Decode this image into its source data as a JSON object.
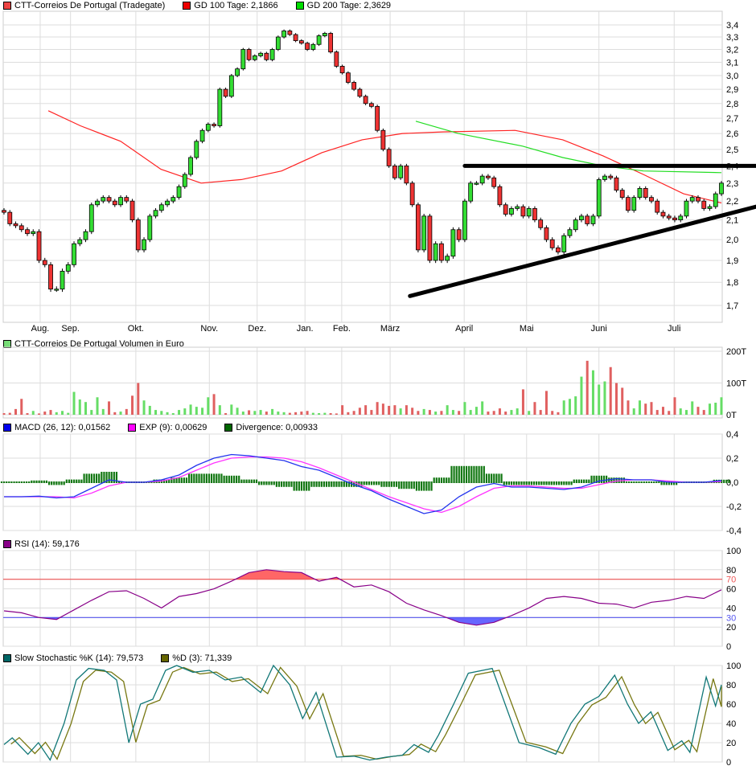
{
  "legends": {
    "main": [
      {
        "label": "CTT-Correios De Portugal (Tradegate)",
        "color": "#ee4444"
      },
      {
        "label": "GD 100 Tage: 2,1866",
        "color": "#ee0000"
      },
      {
        "label": "GD 200 Tage: 2,3629",
        "color": "#00dd00"
      }
    ],
    "volume": [
      {
        "label": "CTT-Correios De Portugal Volumen in Euro",
        "color": "#77dd77"
      }
    ],
    "macd": [
      {
        "label": "MACD (26, 12): 0,01562",
        "color": "#0000ee"
      },
      {
        "label": "EXP (9): 0,00629",
        "color": "#ff00ff"
      },
      {
        "label": "Divergence: 0,00933",
        "color": "#006600"
      }
    ],
    "rsi": [
      {
        "label": "RSI (14): 59,176",
        "color": "#880088"
      }
    ],
    "stoch": [
      {
        "label": "Slow Stochastic %K (14): 79,573",
        "color": "#006666"
      },
      {
        "label": "%D (3): 71,339",
        "color": "#666600"
      }
    ]
  },
  "chart_data": [
    {
      "type": "candlestick",
      "scale": "log",
      "ylim": [
        1.65,
        3.45
      ],
      "grid": true,
      "y_ticks": [
        "1,7",
        "1,8",
        "1,9",
        "2,0",
        "2,1",
        "2,2",
        "2,3",
        "2,4",
        "2,5",
        "2,6",
        "2,7",
        "2,8",
        "2,9",
        "3,0",
        "3,1",
        "3,2",
        "3,3",
        "3,4"
      ],
      "y_tick_values": [
        1.7,
        1.8,
        1.9,
        2.0,
        2.1,
        2.2,
        2.3,
        2.4,
        2.5,
        2.6,
        2.7,
        2.8,
        2.9,
        3.0,
        3.1,
        3.2,
        3.3,
        3.4
      ],
      "month_ticks": [
        {
          "label": "Aug.",
          "index": 6.2
        },
        {
          "label": "Sep.",
          "index": 11.4
        },
        {
          "label": "Okt.",
          "index": 22.6
        },
        {
          "label": "Nov.",
          "index": 35.2
        },
        {
          "label": "Dez.",
          "index": 43.4
        },
        {
          "label": "Jan.",
          "index": 51.6
        },
        {
          "label": "Feb.",
          "index": 57.9
        },
        {
          "label": "März",
          "index": 66.2
        },
        {
          "label": "April",
          "index": 78.9
        },
        {
          "label": "Mai",
          "index": 89.6
        },
        {
          "label": "Juni",
          "index": 102
        },
        {
          "label": "Juli",
          "index": 114.9
        }
      ],
      "closes": [
        2.14,
        2.08,
        2.07,
        2.05,
        2.03,
        2.04,
        1.9,
        1.88,
        1.77,
        1.77,
        1.85,
        1.88,
        1.98,
        2.0,
        2.04,
        2.18,
        2.2,
        2.22,
        2.2,
        2.18,
        2.22,
        2.2,
        2.1,
        1.95,
        2.0,
        2.12,
        2.15,
        2.18,
        2.2,
        2.22,
        2.28,
        2.35,
        2.45,
        2.55,
        2.62,
        2.66,
        2.65,
        2.9,
        2.85,
        3.0,
        3.05,
        3.2,
        3.12,
        3.15,
        3.17,
        3.12,
        3.2,
        3.3,
        3.35,
        3.32,
        3.27,
        3.25,
        3.2,
        3.24,
        3.31,
        3.33,
        3.18,
        3.07,
        3.02,
        2.95,
        2.9,
        2.85,
        2.8,
        2.78,
        2.62,
        2.5,
        2.4,
        2.33,
        2.4,
        2.3,
        2.18,
        1.95,
        2.12,
        1.9,
        1.98,
        1.9,
        1.92,
        2.05,
        2.0,
        2.2,
        2.3,
        2.3,
        2.34,
        2.33,
        2.28,
        2.18,
        2.13,
        2.16,
        2.17,
        2.12,
        2.16,
        2.1,
        2.06,
        2.0,
        1.96,
        1.94,
        2.02,
        2.05,
        2.1,
        2.12,
        2.08,
        2.12,
        2.32,
        2.34,
        2.33,
        2.26,
        2.22,
        2.15,
        2.22,
        2.27,
        2.22,
        2.2,
        2.14,
        2.12,
        2.11,
        2.1,
        2.12,
        2.2,
        2.22,
        2.2,
        2.16,
        2.17,
        2.24,
        2.3
      ],
      "gd100": [
        [
          7.6,
          2.75
        ],
        [
          13.1,
          2.65
        ],
        [
          20,
          2.55
        ],
        [
          26.9,
          2.38
        ],
        [
          33.8,
          2.3
        ],
        [
          40.7,
          2.32
        ],
        [
          47.6,
          2.37
        ],
        [
          54.5,
          2.48
        ],
        [
          61.4,
          2.56
        ],
        [
          68.3,
          2.6
        ],
        [
          75.2,
          2.61
        ],
        [
          87.6,
          2.62
        ],
        [
          95.8,
          2.56
        ],
        [
          102.7,
          2.46
        ],
        [
          109.6,
          2.35
        ],
        [
          116.5,
          2.24
        ],
        [
          123,
          2.19
        ]
      ],
      "gd200": [
        [
          70.6,
          2.68
        ],
        [
          77.9,
          2.6
        ],
        [
          88.9,
          2.52
        ],
        [
          95.8,
          2.45
        ],
        [
          102.7,
          2.4
        ],
        [
          109.6,
          2.37
        ],
        [
          123,
          2.36
        ]
      ],
      "trendlines": [
        {
          "from": [
            79,
            2.4
          ],
          "to": [
            129,
            2.4
          ]
        },
        {
          "from": [
            69.6,
            1.74
          ],
          "to": [
            129,
            2.17
          ]
        }
      ]
    },
    {
      "type": "bar",
      "ylim": [
        0,
        200
      ],
      "y_ticks": [
        "0T",
        "100T",
        "200T"
      ],
      "y_tick_values": [
        0,
        100,
        200
      ],
      "values": [
        5,
        6,
        18,
        50,
        5,
        12,
        4,
        10,
        15,
        8,
        12,
        6,
        72,
        48,
        40,
        15,
        55,
        18,
        42,
        8,
        10,
        18,
        60,
        100,
        45,
        28,
        15,
        12,
        8,
        5,
        15,
        20,
        32,
        25,
        22,
        55,
        65,
        30,
        5,
        32,
        22,
        10,
        14,
        12,
        15,
        10,
        18,
        10,
        8,
        6,
        8,
        10,
        12,
        6,
        5,
        6,
        5,
        4,
        30,
        8,
        12,
        22,
        30,
        15,
        40,
        35,
        28,
        30,
        20,
        30,
        22,
        12,
        18,
        15,
        10,
        12,
        30,
        15,
        12,
        40,
        15,
        25,
        42,
        10,
        12,
        20,
        10,
        15,
        20,
        80,
        12,
        40,
        15,
        75,
        12,
        8,
        45,
        50,
        58,
        120,
        170,
        140,
        95,
        105,
        150,
        100,
        85,
        45,
        20,
        45,
        35,
        40,
        15,
        25,
        12,
        55,
        20,
        15,
        42,
        25,
        15,
        35,
        38,
        55
      ]
    },
    {
      "type": "line",
      "ylim": [
        -0.4,
        0.4
      ],
      "y_ticks": [
        "-0,4",
        "-0,2",
        "0,0",
        "0,2",
        "0,4"
      ],
      "y_tick_values": [
        -0.4,
        -0.2,
        0,
        0.2,
        0.4
      ],
      "macd": [
        -0.12,
        -0.12,
        -0.115,
        -0.13,
        -0.12,
        -0.05,
        0.02,
        0.0,
        0.0,
        0.02,
        0.06,
        0.14,
        0.2,
        0.23,
        0.22,
        0.2,
        0.18,
        0.13,
        0.1,
        0.04,
        -0.02,
        -0.07,
        -0.14,
        -0.2,
        -0.26,
        -0.23,
        -0.12,
        -0.04,
        -0.01,
        -0.04,
        -0.04,
        -0.05,
        -0.06,
        -0.04,
        0.01,
        0.03,
        0.02,
        0.02,
        0.0,
        0.0,
        0.0,
        0.015
      ],
      "exp": [
        -0.12,
        -0.12,
        -0.12,
        -0.12,
        -0.13,
        -0.09,
        -0.03,
        0.0,
        0.0,
        0.01,
        0.04,
        0.1,
        0.16,
        0.2,
        0.21,
        0.21,
        0.2,
        0.17,
        0.12,
        0.06,
        0.0,
        -0.06,
        -0.12,
        -0.17,
        -0.22,
        -0.25,
        -0.2,
        -0.12,
        -0.05,
        -0.03,
        -0.03,
        -0.04,
        -0.05,
        -0.05,
        -0.02,
        0.01,
        0.02,
        0.02,
        0.01,
        0.0,
        0.0,
        0.006
      ]
    },
    {
      "type": "line",
      "ylim": [
        0,
        100
      ],
      "y_ticks": [
        "0",
        "20",
        "30",
        "40",
        "60",
        "70",
        "80",
        "100"
      ],
      "y_tick_values": [
        0,
        20,
        30,
        40,
        60,
        70,
        80,
        100
      ],
      "levels": [
        {
          "value": 70,
          "color": "#ee5555"
        },
        {
          "value": 30,
          "color": "#5555ee"
        }
      ],
      "rsi": [
        37,
        35,
        30,
        28,
        38,
        48,
        57,
        58,
        50,
        40,
        52,
        55,
        60,
        68,
        77,
        80,
        78,
        77,
        68,
        72,
        62,
        64,
        57,
        45,
        38,
        32,
        25,
        22,
        25,
        32,
        40,
        50,
        52,
        50,
        45,
        44,
        40,
        46,
        48,
        52,
        50,
        59
      ]
    },
    {
      "type": "line",
      "ylim": [
        0,
        100
      ],
      "y_ticks": [
        "0",
        "20",
        "40",
        "60",
        "80",
        "100"
      ],
      "y_tick_values": [
        0,
        20,
        40,
        60,
        80,
        100
      ],
      "k": [
        [
          0,
          18
        ],
        [
          1.4,
          25
        ],
        [
          4.1,
          8
        ],
        [
          5.9,
          20
        ],
        [
          7.9,
          2
        ],
        [
          10.3,
          40
        ],
        [
          12.4,
          85
        ],
        [
          14.5,
          97
        ],
        [
          17.2,
          95
        ],
        [
          19.3,
          85
        ],
        [
          21.4,
          20
        ],
        [
          23.4,
          60
        ],
        [
          25.5,
          65
        ],
        [
          27.7,
          95
        ],
        [
          29.6,
          100
        ],
        [
          32.4,
          93
        ],
        [
          35.2,
          95
        ],
        [
          37.9,
          85
        ],
        [
          40.7,
          88
        ],
        [
          44,
          72
        ],
        [
          46.2,
          100
        ],
        [
          49,
          80
        ],
        [
          51.2,
          45
        ],
        [
          53.5,
          72
        ],
        [
          57,
          5
        ],
        [
          60,
          6
        ],
        [
          62.7,
          2
        ],
        [
          65.5,
          5
        ],
        [
          68.3,
          7
        ],
        [
          70.3,
          18
        ],
        [
          72.8,
          10
        ],
        [
          74.5,
          28
        ],
        [
          77.1,
          60
        ],
        [
          79.6,
          92
        ],
        [
          83.7,
          97
        ],
        [
          88.3,
          20
        ],
        [
          91.7,
          15
        ],
        [
          94.6,
          8
        ],
        [
          97.2,
          40
        ],
        [
          99.6,
          60
        ],
        [
          102,
          68
        ],
        [
          104.7,
          90
        ],
        [
          106.9,
          60
        ],
        [
          108.8,
          40
        ],
        [
          110.9,
          52
        ],
        [
          113.8,
          12
        ],
        [
          116.2,
          22
        ],
        [
          117.6,
          10
        ],
        [
          120.4,
          88
        ],
        [
          122,
          58
        ],
        [
          123,
          80
        ]
      ]
    }
  ]
}
